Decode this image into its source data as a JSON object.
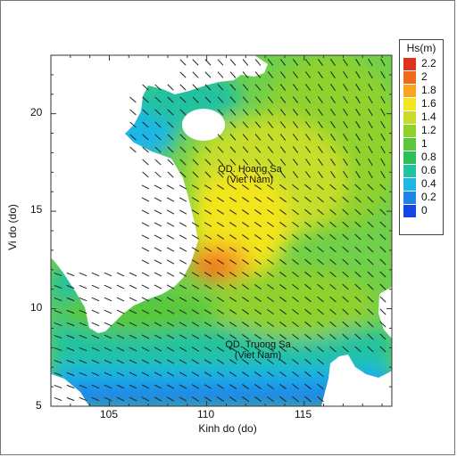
{
  "chart_data": {
    "type": "heatmap",
    "xlabel": "Kinh do (do)",
    "ylabel": "Vi do (do)",
    "xlim": [
      102,
      119.5
    ],
    "ylim": [
      5,
      23
    ],
    "x_ticks": [
      "105",
      "110",
      "115"
    ],
    "y_ticks": [
      "5",
      "10",
      "15",
      "20"
    ],
    "legend": {
      "title": "Hs(m)",
      "levels": [
        {
          "label": "2.2",
          "color": "#e0301e"
        },
        {
          "label": "2",
          "color": "#f06a1c"
        },
        {
          "label": "1.8",
          "color": "#f6a623"
        },
        {
          "label": "1.6",
          "color": "#f3e51f"
        },
        {
          "label": "1.4",
          "color": "#c6de2a"
        },
        {
          "label": "1.2",
          "color": "#8fd22e"
        },
        {
          "label": "1",
          "color": "#58c83a"
        },
        {
          "label": "0.8",
          "color": "#2fbf57"
        },
        {
          "label": "0.6",
          "color": "#23c2a0"
        },
        {
          "label": "0.4",
          "color": "#1fb6e8"
        },
        {
          "label": "0.2",
          "color": "#1d85e8"
        },
        {
          "label": "0",
          "color": "#1646e6"
        }
      ]
    },
    "annotations": [
      {
        "line1": "QD. Hoang Sa",
        "line2": "(Viet Nam)",
        "lon": 112.3,
        "lat": 16.7
      },
      {
        "line1": "QD. Truong Sa",
        "line2": "(Viet Nam)",
        "lon": 112.8,
        "lat": 7.8
      }
    ]
  }
}
